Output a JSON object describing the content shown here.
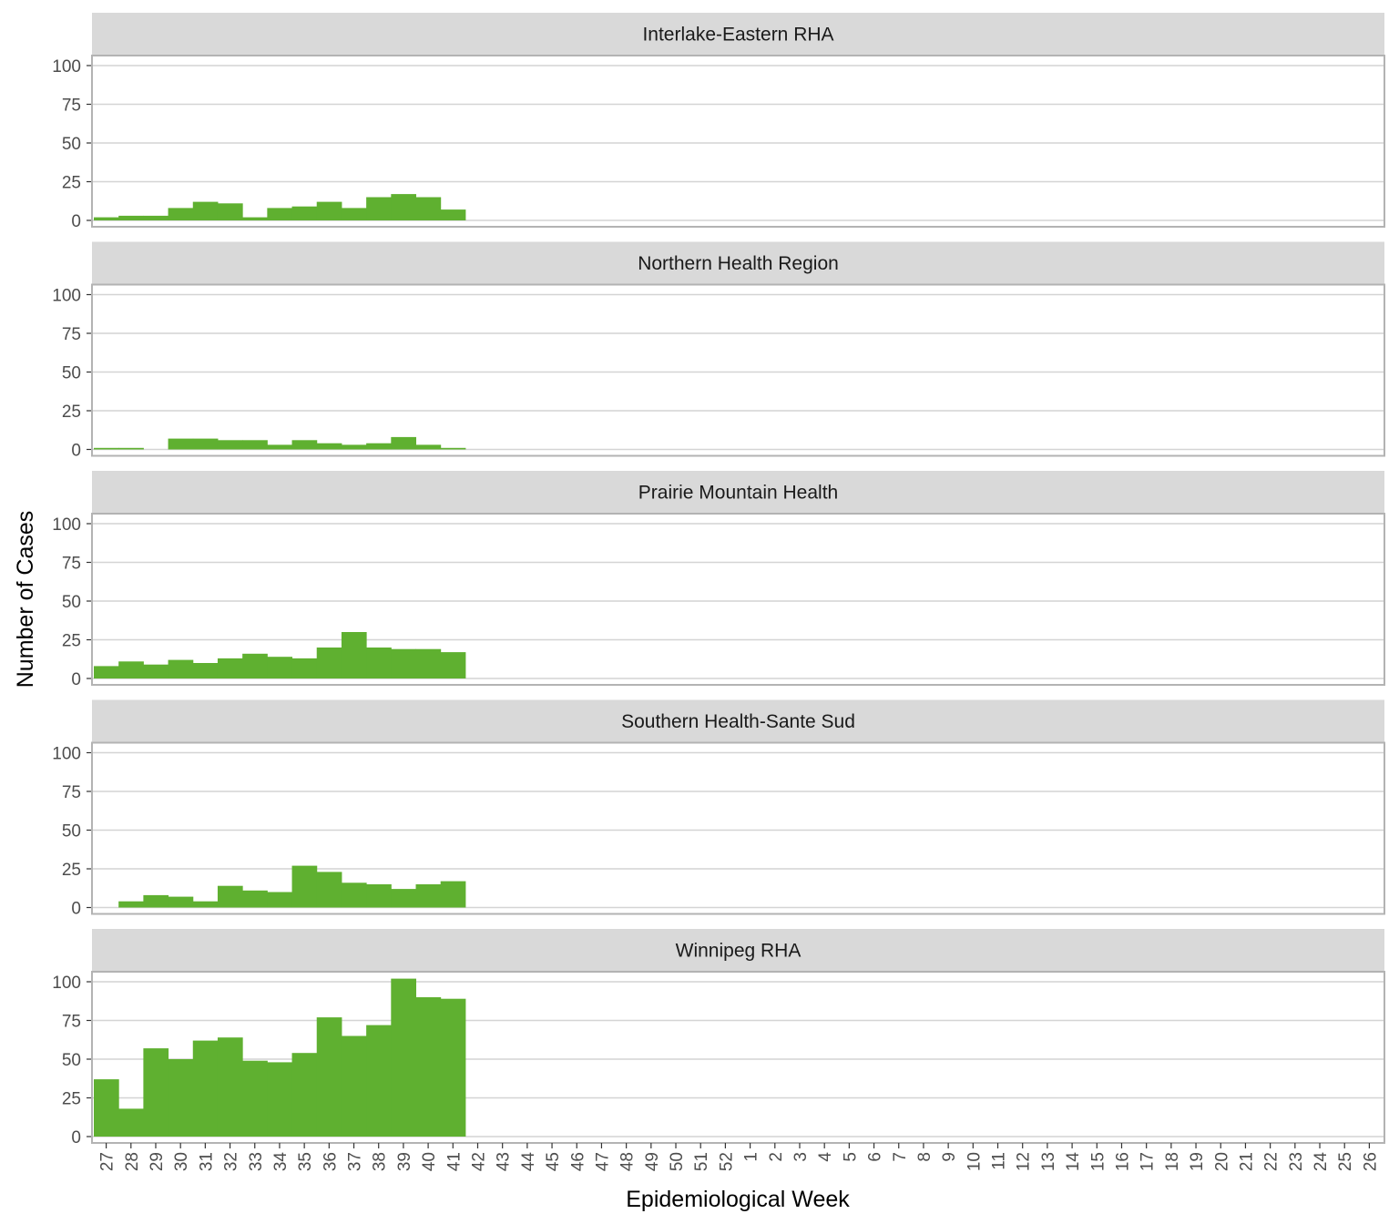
{
  "chart_data": {
    "type": "bar",
    "xlabel": "Epidemiological Week",
    "ylabel": "Number of Cases",
    "ylim": [
      0,
      110
    ],
    "yticks": [
      0,
      25,
      50,
      75,
      100
    ],
    "grid": true,
    "bar_color": "#5fb030",
    "categories": [
      "27",
      "28",
      "29",
      "30",
      "31",
      "32",
      "33",
      "34",
      "35",
      "36",
      "37",
      "38",
      "39",
      "40",
      "41",
      "42",
      "43",
      "44",
      "45",
      "46",
      "47",
      "48",
      "49",
      "50",
      "51",
      "52",
      "1",
      "2",
      "3",
      "4",
      "5",
      "6",
      "7",
      "8",
      "9",
      "10",
      "11",
      "12",
      "13",
      "14",
      "15",
      "16",
      "17",
      "18",
      "19",
      "20",
      "21",
      "22",
      "23",
      "24",
      "25",
      "26"
    ],
    "panels": [
      {
        "name": "Interlake-Eastern RHA",
        "values": [
          2,
          3,
          3,
          8,
          12,
          11,
          2,
          8,
          9,
          12,
          8,
          15,
          17,
          15,
          7
        ]
      },
      {
        "name": "Northern Health Region",
        "values": [
          1,
          1,
          0,
          7,
          7,
          6,
          6,
          3,
          6,
          4,
          3,
          4,
          8,
          3,
          1
        ]
      },
      {
        "name": "Prairie Mountain Health",
        "values": [
          8,
          11,
          9,
          12,
          10,
          13,
          16,
          14,
          13,
          20,
          30,
          20,
          19,
          19,
          17
        ]
      },
      {
        "name": "Southern Health-Sante Sud",
        "values": [
          0,
          4,
          8,
          7,
          4,
          14,
          11,
          10,
          27,
          23,
          16,
          15,
          12,
          15,
          17
        ]
      },
      {
        "name": "Winnipeg RHA",
        "values": [
          37,
          18,
          57,
          50,
          62,
          64,
          49,
          48,
          54,
          77,
          65,
          72,
          102,
          90,
          89
        ]
      }
    ]
  }
}
